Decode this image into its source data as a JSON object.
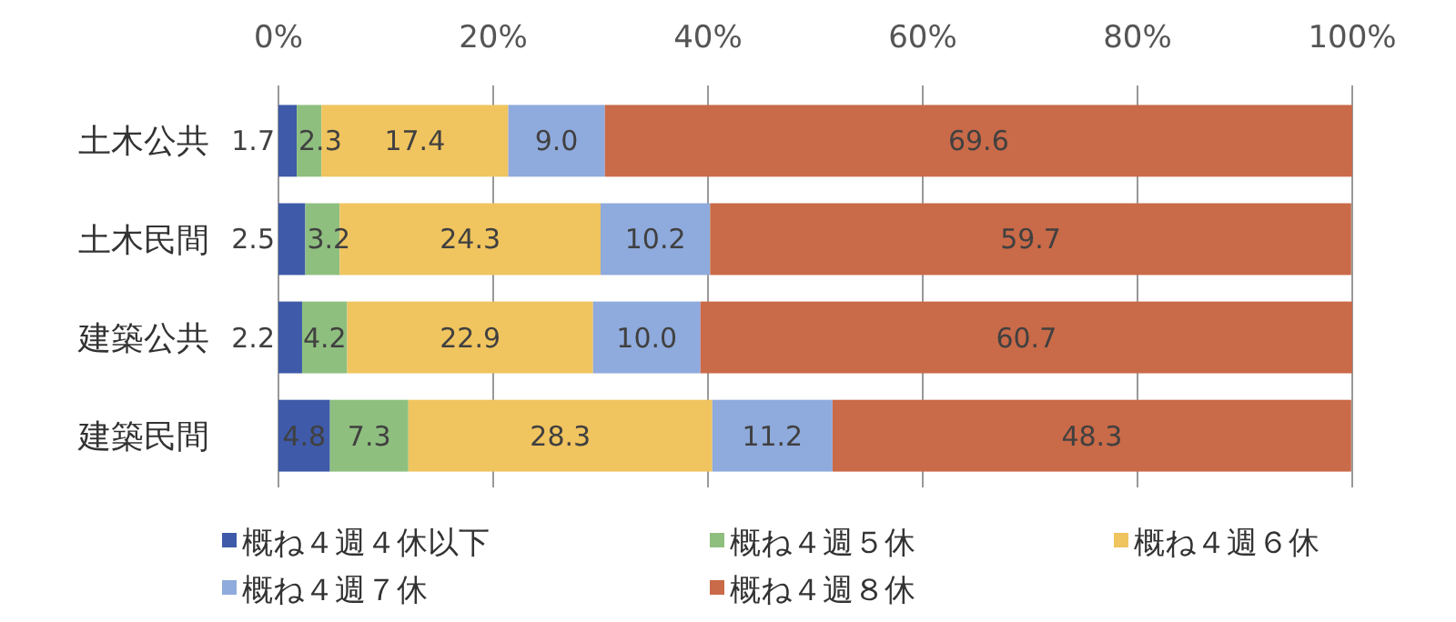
{
  "chart_data": {
    "type": "bar",
    "orientation": "horizontal",
    "stacked": true,
    "grid": "x",
    "legend": "bottom",
    "categories": [
      "土木公共",
      "土木民間",
      "建築公共",
      "建築民間"
    ],
    "series": [
      {
        "name": "概ね４週４休以下",
        "color": "#3f5aa8",
        "values": [
          1.7,
          2.5,
          2.2,
          4.8
        ],
        "value_labels": [
          "1.7",
          "2.5",
          "2.2",
          "4.8"
        ]
      },
      {
        "name": "概ね４週５休",
        "color": "#8fbf7f",
        "values": [
          2.3,
          3.2,
          4.2,
          7.3
        ],
        "value_labels": [
          "2.3",
          "3.2",
          "4.2",
          "7.3"
        ]
      },
      {
        "name": "概ね４週６休",
        "color": "#f0c45f",
        "values": [
          17.4,
          24.3,
          22.9,
          28.3
        ],
        "value_labels": [
          "17.4",
          "24.3",
          "22.9",
          "28.3"
        ]
      },
      {
        "name": "概ね４週７休",
        "color": "#8faadc",
        "values": [
          9.0,
          10.2,
          10.0,
          11.2
        ],
        "value_labels": [
          "9.0",
          "10.2",
          "10.0",
          "11.2"
        ]
      },
      {
        "name": "概ね４週８休",
        "color": "#c96a48",
        "values": [
          69.6,
          59.7,
          60.7,
          48.3
        ],
        "value_labels": [
          "69.6",
          "59.7",
          "60.7",
          "48.3"
        ]
      }
    ],
    "xlim": [
      0,
      100
    ],
    "xticks": [
      {
        "value": 0,
        "label": "0%"
      },
      {
        "value": 20,
        "label": "20%"
      },
      {
        "value": 40,
        "label": "40%"
      },
      {
        "value": 60,
        "label": "60%"
      },
      {
        "value": 80,
        "label": "80%"
      },
      {
        "value": 100,
        "label": "100%"
      }
    ]
  }
}
